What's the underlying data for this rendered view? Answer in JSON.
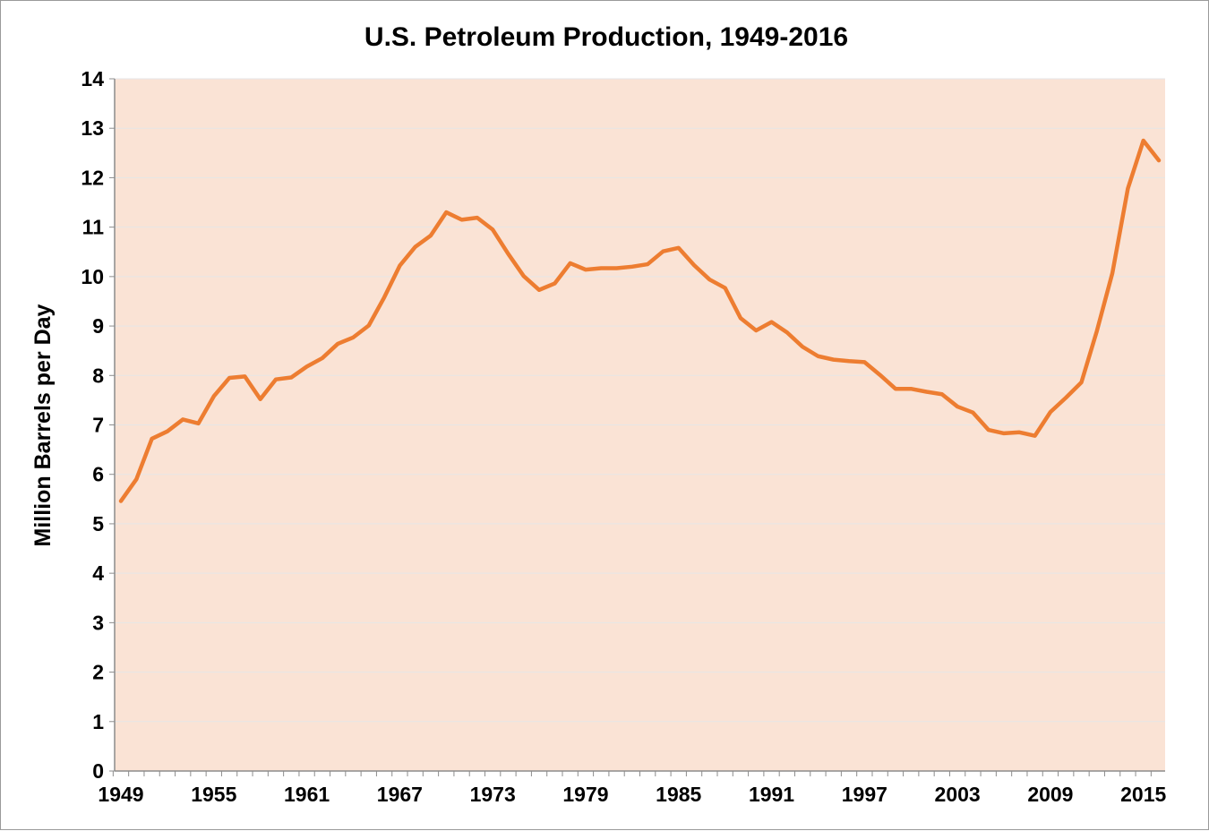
{
  "chart_data": {
    "type": "line",
    "title": "U.S. Petroleum Production, 1949-2016",
    "xlabel": "",
    "ylabel": "Million Barrels per Day",
    "xlim": [
      1949,
      2016
    ],
    "ylim": [
      0,
      14
    ],
    "y_ticks": [
      0,
      1,
      2,
      3,
      4,
      5,
      6,
      7,
      8,
      9,
      10,
      11,
      12,
      13,
      14
    ],
    "x_tick_labels": [
      "1949",
      "1955",
      "1961",
      "1967",
      "1973",
      "1979",
      "1985",
      "1991",
      "1997",
      "2003",
      "2009",
      "2015"
    ],
    "grid": true,
    "legend": "none",
    "colors": {
      "line": "#ED7D31",
      "plot_background": "#FAE3D5",
      "grid": "#E6E6E6"
    },
    "series": [
      {
        "x": [
          1949,
          1950,
          1951,
          1952,
          1953,
          1954,
          1955,
          1956,
          1957,
          1958,
          1959,
          1960,
          1961,
          1962,
          1963,
          1964,
          1965,
          1966,
          1967,
          1968,
          1969,
          1970,
          1971,
          1972,
          1973,
          1974,
          1975,
          1976,
          1977,
          1978,
          1979,
          1980,
          1981,
          1982,
          1983,
          1984,
          1985,
          1986,
          1987,
          1988,
          1989,
          1990,
          1991,
          1992,
          1993,
          1994,
          1995,
          1996,
          1997,
          1998,
          1999,
          2000,
          2001,
          2002,
          2003,
          2004,
          2005,
          2006,
          2007,
          2008,
          2009,
          2010,
          2011,
          2012,
          2013,
          2014,
          2015,
          2016
        ],
        "values": [
          5.46,
          5.9,
          6.72,
          6.87,
          7.11,
          7.03,
          7.58,
          7.95,
          7.98,
          7.52,
          7.92,
          7.96,
          8.18,
          8.35,
          8.64,
          8.77,
          9.01,
          9.58,
          10.22,
          10.6,
          10.83,
          11.3,
          11.15,
          11.19,
          10.95,
          10.46,
          10.01,
          9.73,
          9.86,
          10.27,
          10.14,
          10.17,
          10.17,
          10.2,
          10.25,
          10.51,
          10.58,
          10.23,
          9.94,
          9.77,
          9.16,
          8.91,
          9.08,
          8.87,
          8.58,
          8.39,
          8.32,
          8.29,
          8.27,
          8.01,
          7.73,
          7.73,
          7.67,
          7.62,
          7.37,
          7.25,
          6.9,
          6.83,
          6.85,
          6.78,
          7.26,
          7.55,
          7.86,
          8.9,
          10.07,
          11.78,
          12.75,
          12.35
        ]
      }
    ]
  }
}
